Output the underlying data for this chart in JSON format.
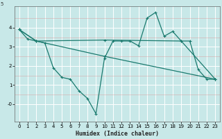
{
  "xlabel": "Humidex (Indice chaleur)",
  "bg_color": "#c8e8e8",
  "grid_color": "#ffffff",
  "line_color": "#1a7a6e",
  "xlim": [
    -0.5,
    23.5
  ],
  "ylim": [
    -0.9,
    5.1
  ],
  "xticks": [
    0,
    1,
    2,
    3,
    4,
    5,
    6,
    7,
    8,
    9,
    10,
    11,
    12,
    13,
    14,
    15,
    16,
    17,
    18,
    19,
    20,
    21,
    22,
    23
  ],
  "yticks": [
    0,
    1,
    2,
    3,
    4
  ],
  "ytick_labels": [
    "-0",
    "1",
    "2",
    "3",
    "4"
  ],
  "series1_x": [
    0,
    1,
    2,
    3,
    4,
    5,
    6,
    7,
    8,
    9,
    10,
    11,
    12,
    13,
    14,
    15,
    16,
    17,
    18,
    19,
    20,
    21,
    22,
    23
  ],
  "series1_y": [
    3.9,
    3.4,
    3.3,
    3.2,
    1.9,
    1.4,
    1.3,
    0.7,
    0.3,
    -0.5,
    2.4,
    3.3,
    3.3,
    3.3,
    3.05,
    4.5,
    4.8,
    3.55,
    3.8,
    3.3,
    3.3,
    1.8,
    1.3,
    1.3
  ],
  "series2_x": [
    0,
    2,
    10,
    19,
    23
  ],
  "series2_y": [
    3.9,
    3.3,
    3.35,
    3.3,
    1.3
  ],
  "series3_x": [
    0,
    2,
    10,
    23
  ],
  "series3_y": [
    3.9,
    3.3,
    2.5,
    1.3
  ],
  "xlabel_fontsize": 6,
  "tick_fontsize": 5,
  "linewidth": 0.9,
  "marker": "+",
  "markersize": 3,
  "markeredgewidth": 0.8
}
